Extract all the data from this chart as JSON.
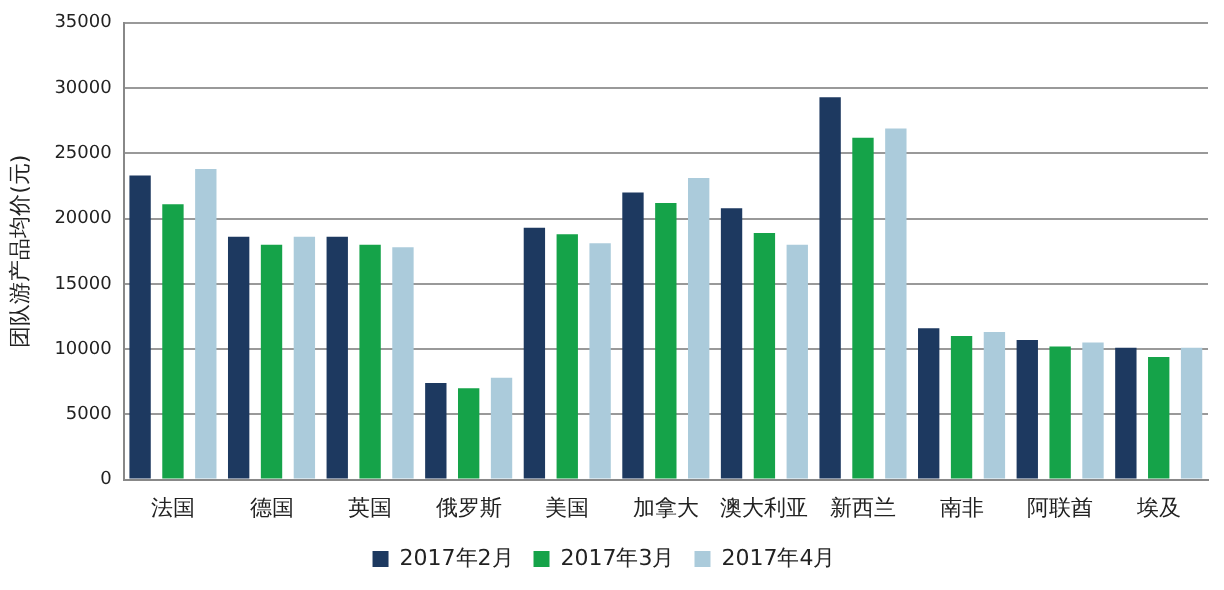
{
  "chart_data": {
    "type": "bar",
    "ylabel": "团队游产品均价(元)",
    "categories": [
      "法国",
      "德国",
      "英国",
      "俄罗斯",
      "美国",
      "加拿大",
      "澳大利亚",
      "新西兰",
      "南非",
      "阿联酋",
      "埃及"
    ],
    "series": [
      {
        "name": "2017年2月",
        "color": "#1d3960",
        "values": [
          23300,
          18600,
          18600,
          7400,
          19300,
          22000,
          20800,
          29300,
          11600,
          10700,
          10100
        ]
      },
      {
        "name": "2017年3月",
        "color": "#15a349",
        "values": [
          21100,
          18000,
          18000,
          7000,
          18800,
          21200,
          18900,
          26200,
          11000,
          10200,
          9400
        ]
      },
      {
        "name": "2017年4月",
        "color": "#abcbdb",
        "values": [
          23800,
          18600,
          17800,
          7800,
          18100,
          23100,
          18000,
          26900,
          11300,
          10500,
          10100
        ]
      }
    ],
    "ylim": [
      0,
      35000
    ],
    "yticks": [
      0,
      5000,
      10000,
      15000,
      20000,
      25000,
      30000,
      35000
    ],
    "grid": "y",
    "legend": "bottom"
  }
}
